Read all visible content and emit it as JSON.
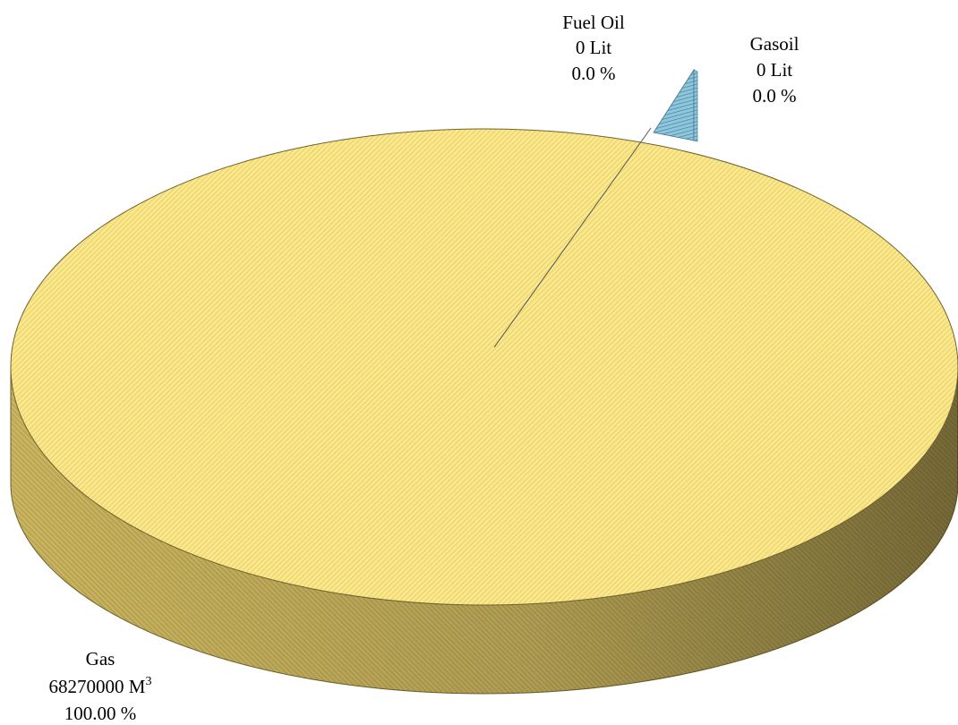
{
  "chart_data": {
    "type": "pie",
    "style": "3d",
    "slices": [
      {
        "name": "Gas",
        "value": 68270000,
        "unit": "M",
        "unit_sup": "3",
        "value_text": "68270000 M",
        "percent": 100.0,
        "percent_text": "100.00 %",
        "color": "#f2db6a"
      },
      {
        "name": "Fuel Oil",
        "value": 0,
        "unit": "Lit",
        "value_text": "0 Lit",
        "percent": 0.0,
        "percent_text": "0.0 %",
        "color": "#8fc6dc"
      },
      {
        "name": "Gasoil",
        "value": 0,
        "unit": "Lit",
        "value_text": "0  Lit",
        "percent": 0.0,
        "percent_text": "0.0 %",
        "color": "#8fc6dc"
      }
    ]
  }
}
